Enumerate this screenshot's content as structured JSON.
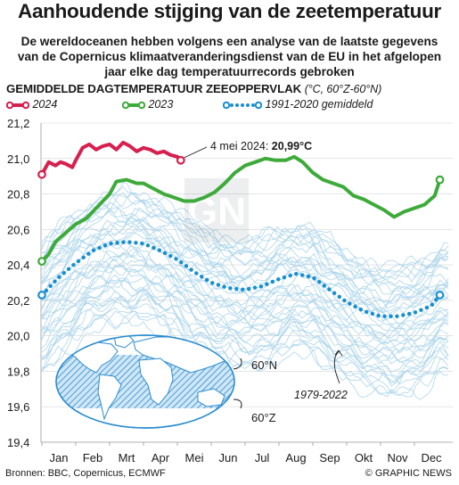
{
  "header": {
    "title": "Aanhoudende stijging van de zeetemperatuur",
    "subtitle_lines": [
      "De wereldoceanen hebben volgens een analyse van de laatste gegevens",
      "van de Copernicus klimaatveranderingsdienst van de EU in het afgelopen",
      "jaar elke dag temperatuurrecords gebroken"
    ]
  },
  "chart_heading": {
    "title": "GEMIDDELDE DAGTEMPERATUUR ZEEOPPERVLAK",
    "units": "(°C, 60°Z-60°N)"
  },
  "legend": {
    "items": [
      {
        "label": "2024",
        "color": "#d6204f"
      },
      {
        "label": "2023",
        "color": "#3daa3a"
      },
      {
        "label": "1991-2020 gemiddeld",
        "color": "#1a8fd0"
      }
    ]
  },
  "annotations": {
    "record_prefix": "4 mei 2024: ",
    "record_value": "20,99°C",
    "range_label": "1979-2022",
    "map_north": "60°N",
    "map_south": "60°Z"
  },
  "footer": {
    "source": "Bronnen: BBC, Copernicus, ECMWF",
    "brand": "© GRAPHIC NEWS"
  },
  "colors": {
    "y2024": "#d6204f",
    "y2023": "#3daa3a",
    "average": "#1a8fd0",
    "historical": "#a9d3ea",
    "map_ocean": "#cfe6f5",
    "map_land": "#2a8ccf"
  },
  "chart_data": {
    "type": "line",
    "title": "GEMIDDELDE DAGTEMPERATUUR ZEEOPPERVLAK",
    "ylabel": "°C, 60°Z-60°N",
    "x_categories": [
      "Jan",
      "Feb",
      "Mrt",
      "Apr",
      "Mei",
      "Jun",
      "Jul",
      "Aug",
      "Sep",
      "Okt",
      "Nov",
      "Dec"
    ],
    "x_unit": "month (fractional, 0 = 1 Jan, 12 = 31 Dec)",
    "ylim": [
      19.4,
      21.2
    ],
    "yticks": [
      "19,4",
      "19,6",
      "19,8",
      "20,0",
      "20,2",
      "20,4",
      "20,6",
      "20,8",
      "21,0",
      "21,2"
    ],
    "series": [
      {
        "name": "2024",
        "x": [
          0.0,
          0.2,
          0.4,
          0.55,
          0.7,
          0.9,
          1.0,
          1.2,
          1.4,
          1.6,
          1.8,
          2.0,
          2.2,
          2.4,
          2.6,
          2.8,
          3.0,
          3.2,
          3.4,
          3.6,
          3.8,
          4.0,
          4.1
        ],
        "y": [
          20.91,
          20.98,
          20.96,
          20.98,
          20.97,
          20.95,
          20.99,
          21.06,
          21.08,
          21.05,
          21.07,
          21.08,
          21.05,
          21.09,
          21.07,
          21.04,
          21.06,
          21.05,
          21.03,
          21.04,
          21.02,
          21.01,
          20.99
        ]
      },
      {
        "name": "2023",
        "x": [
          0.0,
          0.2,
          0.4,
          0.7,
          1.0,
          1.3,
          1.6,
          2.0,
          2.2,
          2.5,
          2.8,
          3.0,
          3.3,
          3.6,
          3.9,
          4.2,
          4.5,
          4.8,
          5.1,
          5.4,
          5.7,
          6.0,
          6.3,
          6.6,
          6.9,
          7.2,
          7.45,
          7.7,
          8.0,
          8.3,
          8.6,
          8.9,
          9.2,
          9.5,
          9.8,
          10.1,
          10.4,
          10.7,
          11.0,
          11.3,
          11.6,
          11.75
        ],
        "y": [
          20.42,
          20.46,
          20.53,
          20.58,
          20.63,
          20.66,
          20.72,
          20.8,
          20.87,
          20.88,
          20.86,
          20.86,
          20.83,
          20.8,
          20.78,
          20.76,
          20.76,
          20.78,
          20.81,
          20.86,
          20.92,
          20.96,
          20.98,
          21.0,
          20.99,
          20.99,
          21.01,
          20.98,
          20.92,
          20.88,
          20.86,
          20.84,
          20.79,
          20.77,
          20.74,
          20.71,
          20.67,
          20.7,
          20.72,
          20.74,
          20.79,
          20.88
        ]
      },
      {
        "name": "1991-2020 gemiddeld",
        "x": [
          0.0,
          0.5,
          1.0,
          1.5,
          2.0,
          2.5,
          3.0,
          3.5,
          4.0,
          4.5,
          5.0,
          5.5,
          6.0,
          6.5,
          7.0,
          7.5,
          8.0,
          8.5,
          9.0,
          9.5,
          10.0,
          10.5,
          11.0,
          11.5,
          11.75
        ],
        "y": [
          20.23,
          20.33,
          20.41,
          20.48,
          20.52,
          20.53,
          20.52,
          20.48,
          20.43,
          20.36,
          20.3,
          20.27,
          20.26,
          20.28,
          20.32,
          20.35,
          20.33,
          20.26,
          20.19,
          20.14,
          20.11,
          20.11,
          20.13,
          20.17,
          20.23
        ]
      }
    ]
  }
}
